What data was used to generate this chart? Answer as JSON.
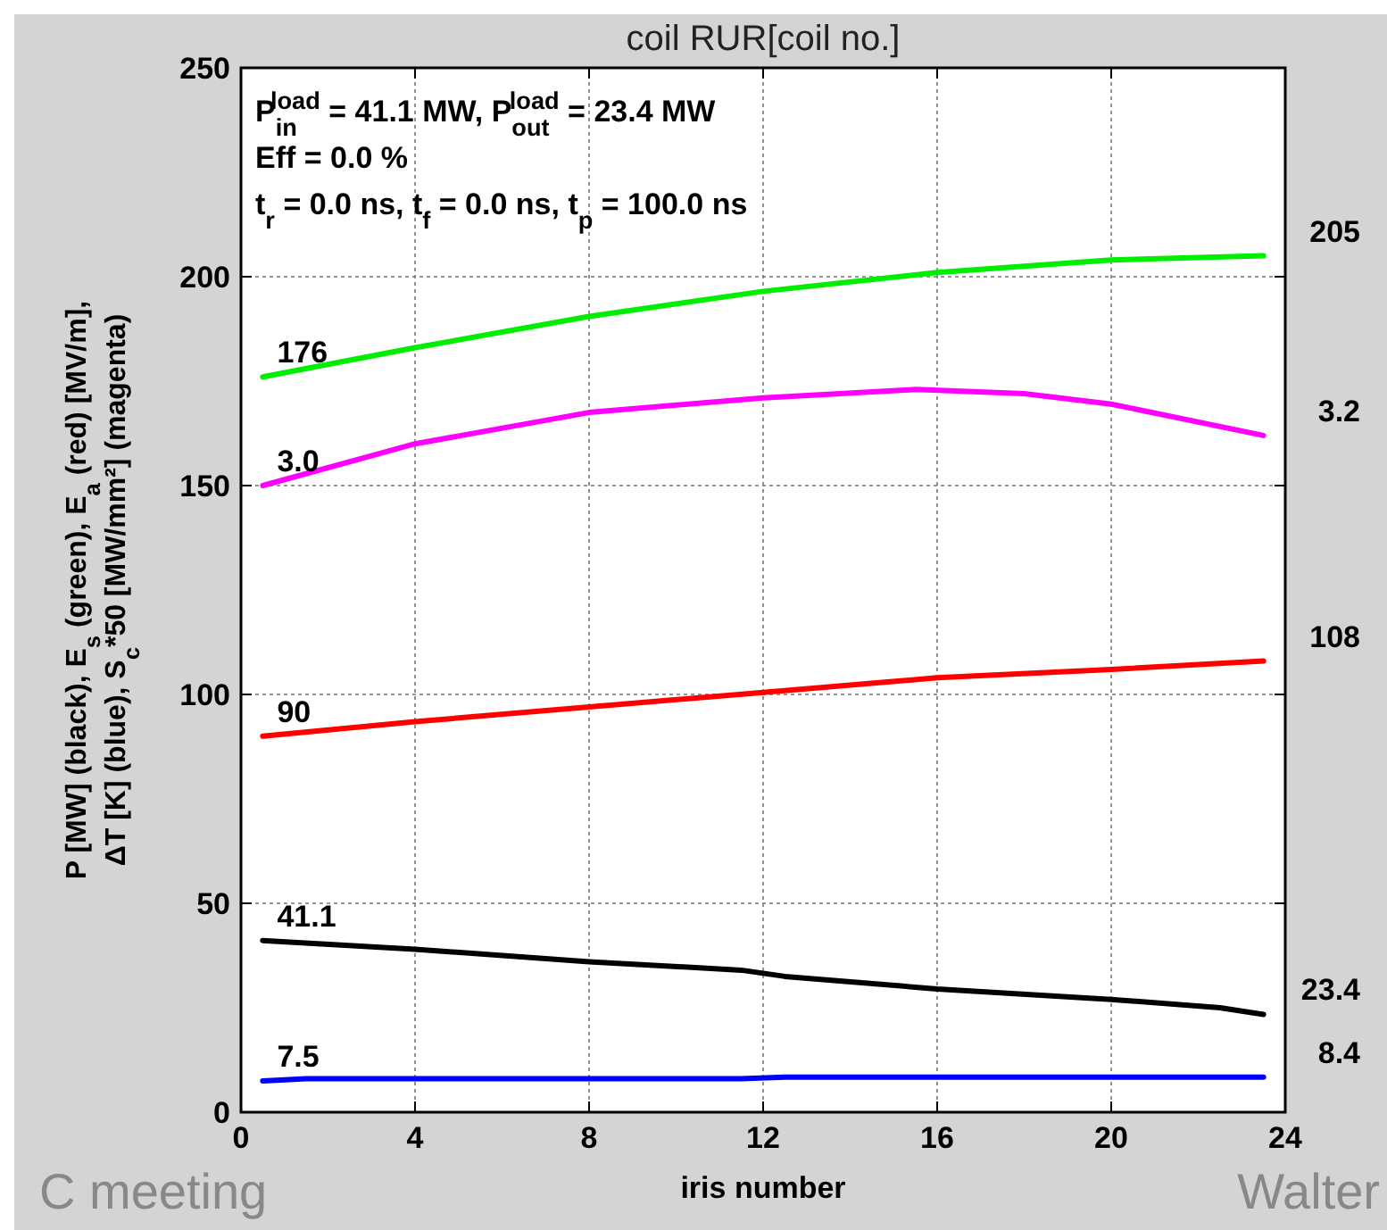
{
  "chart_data": {
    "type": "line",
    "title": "coil RUR[coil no.]",
    "xlabel": "iris number",
    "ylabel": "P [MW] (black), E$_{s}$ (green), E$_{a}$ (red) [MV/m],\nΔT [K] (blue), S$_{c}$*50 [MW/mm²] (magenta)",
    "series": [
      {
        "color": "#00ee00",
        "x": [
          0.5,
          4,
          8,
          12,
          16,
          20,
          23.5
        ],
        "values": [
          176,
          183,
          190.5,
          196.5,
          201,
          204,
          205
        ],
        "value_labels": [
          "176",
          null,
          null,
          null,
          null,
          null,
          "205"
        ]
      },
      {
        "color": "#ff00ff",
        "x": [
          0.5,
          4,
          8,
          12,
          15.5,
          18,
          20,
          23.5
        ],
        "values": [
          150,
          160,
          167.5,
          171,
          173,
          172,
          169.5,
          162
        ]
      },
      {
        "color": "#ff0000",
        "x": [
          0.5,
          4,
          8,
          12,
          16,
          20,
          23.5
        ],
        "values": [
          90,
          93.5,
          97,
          100.5,
          104,
          106,
          108
        ],
        "value_labels": [
          "90",
          null,
          null,
          null,
          null,
          null,
          "108"
        ]
      },
      {
        "color": "#000000",
        "x": [
          0.5,
          4,
          8,
          11.5,
          12.5,
          16,
          20,
          22.5,
          23.5
        ],
        "values": [
          41.1,
          39,
          36,
          34,
          32.5,
          29.5,
          27,
          25,
          23.4
        ],
        "value_labels": [
          "41.1",
          null,
          null,
          null,
          null,
          null,
          null,
          null,
          "23.4"
        ]
      },
      {
        "color": "#0000ff",
        "x": [
          0.5,
          1.5,
          11.5,
          12.5,
          23.5
        ],
        "values": [
          7.5,
          8,
          8,
          8.4,
          8.4
        ],
        "value_labels": [
          "7.5",
          null,
          null,
          null,
          "8.4"
        ]
      }
    ],
    "xlim": [
      0,
      24
    ],
    "xticks": [
      0,
      4,
      8,
      12,
      16,
      20,
      24
    ],
    "ylim": [
      0,
      250
    ],
    "yticks": [
      0,
      50,
      100,
      150,
      200,
      250
    ],
    "grid": true,
    "marker": "none",
    "line_style": "solid",
    "annotations": [
      "P$_{in}$$^{load}$ =  41.1 MW, P$_{out}$$^{load}$ =  23.4 MW",
      "Eff =  0.0 %",
      "t$_{r}$ =  0.0 ns, t$_{f}$ =  0.0 ns, t$_{p}$ = 100.0 ns",
      "C meeting",
      "Walter",
      {
        "text": "3.0",
        "x": 0.5,
        "y": 150
      },
      {
        "text": "3.2",
        "x": 23.5,
        "y": 162
      }
    ]
  }
}
